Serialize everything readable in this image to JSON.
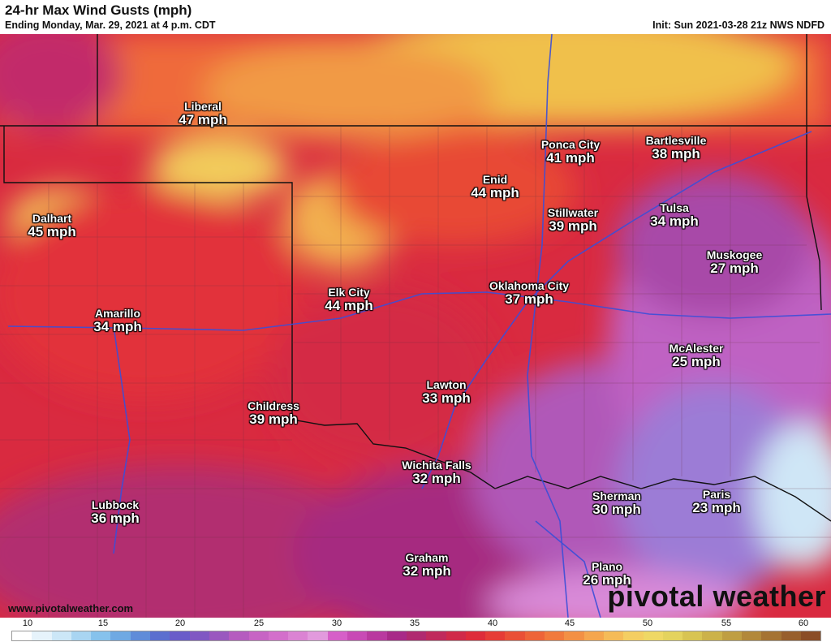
{
  "header": {
    "title": "24-hr Max Wind Gusts (mph)",
    "subtitle": "Ending Monday, Mar. 29, 2021 at 4 p.m. CDT",
    "init": "Init: Sun 2021-03-28 21z NWS NDFD"
  },
  "cities": [
    {
      "name": "Liberal",
      "value": "47 mph"
    },
    {
      "name": "Ponca City",
      "value": "41 mph"
    },
    {
      "name": "Bartlesville",
      "value": "38 mph"
    },
    {
      "name": "Enid",
      "value": "44 mph"
    },
    {
      "name": "Dalhart",
      "value": "45 mph"
    },
    {
      "name": "Stillwater",
      "value": "39 mph"
    },
    {
      "name": "Tulsa",
      "value": "34 mph"
    },
    {
      "name": "Muskogee",
      "value": "27 mph"
    },
    {
      "name": "Elk City",
      "value": "44 mph"
    },
    {
      "name": "Oklahoma City",
      "value": "37 mph"
    },
    {
      "name": "Amarillo",
      "value": "34 mph"
    },
    {
      "name": "McAlester",
      "value": "25 mph"
    },
    {
      "name": "Lawton",
      "value": "33 mph"
    },
    {
      "name": "Childress",
      "value": "39 mph"
    },
    {
      "name": "Wichita Falls",
      "value": "32 mph"
    },
    {
      "name": "Sherman",
      "value": "30 mph"
    },
    {
      "name": "Paris",
      "value": "23 mph"
    },
    {
      "name": "Lubbock",
      "value": "36 mph"
    },
    {
      "name": "Graham",
      "value": "32 mph"
    },
    {
      "name": "Plano",
      "value": "26 mph"
    }
  ],
  "footer": {
    "website": "www.pivotalweather.com",
    "brand": "pivotal weather"
  },
  "legend": {
    "ticks": [
      "10",
      "15",
      "20",
      "25",
      "30",
      "35",
      "40",
      "45",
      "50",
      "55",
      "60"
    ],
    "colors": [
      "#ffffff",
      "#e6f3fb",
      "#cce7f7",
      "#a9d5f2",
      "#86c2ec",
      "#6fa9e3",
      "#5f8cd9",
      "#5b6fcf",
      "#6a5cc9",
      "#8058c3",
      "#9a58bf",
      "#b55cbf",
      "#c764c4",
      "#d36fcb",
      "#db83d3",
      "#e29add",
      "#d65fc8",
      "#c84ab5",
      "#b9399f",
      "#a82a88",
      "#b02a70",
      "#c02a5c",
      "#d02a49",
      "#de2c3a",
      "#e63c36",
      "#ea5036",
      "#ee6438",
      "#f17a3c",
      "#f39044",
      "#f5a64e",
      "#f5bb58",
      "#f4ce62",
      "#efd865",
      "#e4d35e",
      "#d8c452",
      "#ccb24a",
      "#bf9e42",
      "#b2883a",
      "#a57333",
      "#985f2c",
      "#8b4d26"
    ]
  }
}
